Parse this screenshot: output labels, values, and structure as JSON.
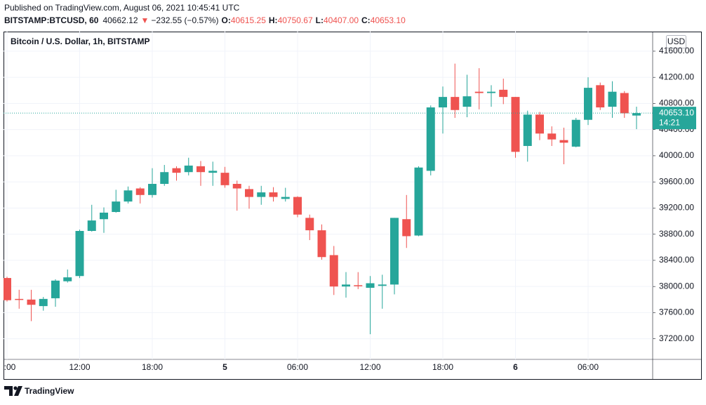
{
  "header": {
    "published": "Published on TradingView.com, August 06, 2021 10:45:41 UTC",
    "symbol": "BITSTAMP:BTCUSD, 60",
    "price": "40662.12",
    "change": "−232.55 (−0.57%)",
    "ohlc": [
      {
        "label": "O:",
        "value": "40615.25"
      },
      {
        "label": "H:",
        "value": "40750.67"
      },
      {
        "label": "L:",
        "value": "40407.00"
      },
      {
        "label": "C:",
        "value": "40653.10"
      }
    ]
  },
  "chart_data": {
    "type": "candlestick",
    "title": "Bitcoin / U.S. Dollar, 1h, BITSTAMP",
    "currency": "USD",
    "categories": [
      ":00",
      null,
      null,
      null,
      null,
      null,
      "12:00",
      null,
      null,
      null,
      null,
      null,
      "18:00",
      null,
      null,
      null,
      null,
      null,
      "5",
      null,
      null,
      null,
      null,
      null,
      "06:00",
      null,
      null,
      null,
      null,
      null,
      "12:00",
      null,
      null,
      null,
      null,
      null,
      "18:00",
      null,
      null,
      null,
      null,
      null,
      "6",
      null,
      null,
      null,
      null,
      null,
      "06:00",
      null,
      null,
      null,
      null
    ],
    "open": [
      38130,
      37810,
      37800,
      37700,
      37820,
      38080,
      38160,
      38850,
      39030,
      39140,
      39300,
      39500,
      39400,
      39570,
      39810,
      39750,
      39840,
      39740,
      39740,
      39570,
      39490,
      39370,
      39440,
      39340,
      39370,
      39050,
      38860,
      38480,
      38000,
      38020,
      37980,
      38010,
      38030,
      39030,
      38780,
      39770,
      40740,
      40900,
      40750,
      40980,
      40960,
      41010,
      40900,
      40150,
      40630,
      40340,
      40240,
      40140,
      40550,
      41080,
      40750,
      40960,
      40615.25
    ],
    "high": [
      38150,
      37950,
      37950,
      37840,
      38110,
      38260,
      38870,
      39250,
      39210,
      39480,
      39530,
      39520,
      39810,
      39860,
      39840,
      39970,
      39920,
      39910,
      39830,
      39620,
      39540,
      39540,
      39520,
      39510,
      39380,
      39100,
      38950,
      38620,
      38220,
      38220,
      38160,
      38180,
      39050,
      39400,
      39840,
      40770,
      41060,
      41410,
      41240,
      41340,
      41080,
      41180,
      40900,
      40690,
      40670,
      40450,
      40430,
      40580,
      41200,
      41120,
      41140,
      40990,
      40750.67
    ],
    "low": [
      37770,
      37660,
      37470,
      37630,
      37690,
      38060,
      38130,
      38840,
      38820,
      39130,
      39270,
      39270,
      39360,
      39540,
      39620,
      39700,
      39540,
      39540,
      39510,
      39160,
      39190,
      39250,
      39300,
      39300,
      39060,
      38710,
      38410,
      37870,
      37830,
      37960,
      37270,
      37660,
      37880,
      38590,
      38770,
      39700,
      40340,
      40580,
      40590,
      40710,
      40750,
      40790,
      39970,
      39910,
      40240,
      40150,
      39870,
      40130,
      40470,
      40700,
      40580,
      40580,
      40407
    ],
    "close": [
      37790,
      37800,
      37720,
      37810,
      38090,
      38140,
      38850,
      39010,
      39130,
      39300,
      39470,
      39400,
      39570,
      39750,
      39740,
      39850,
      39750,
      39770,
      39550,
      39500,
      39370,
      39440,
      39370,
      39370,
      39100,
      38860,
      38450,
      38000,
      38030,
      38010,
      38050,
      38030,
      39050,
      38770,
      39820,
      40740,
      40900,
      40700,
      40910,
      40960,
      40980,
      40900,
      40060,
      40630,
      40340,
      40250,
      40200,
      40550,
      41040,
      40740,
      40980,
      40650,
      40653.1
    ],
    "up_color": "#26a69a",
    "down_color": "#ef5350",
    "ylim": [
      36885,
      41900
    ],
    "yticks": [
      {
        "value": 37200,
        "label": "37200.00"
      },
      {
        "value": 37600,
        "label": "37600.00"
      },
      {
        "value": 38000,
        "label": "38000.00"
      },
      {
        "value": 38400,
        "label": "38400.00"
      },
      {
        "value": 38800,
        "label": "38800.00"
      },
      {
        "value": 39200,
        "label": "39200.00"
      },
      {
        "value": 39600,
        "label": "39600.00"
      },
      {
        "value": 40000,
        "label": "40000.00"
      },
      {
        "value": 40400,
        "label": "40400.00"
      },
      {
        "value": 40800,
        "label": "40800.00"
      },
      {
        "value": 41200,
        "label": "41200.00"
      },
      {
        "value": 41600,
        "label": "41600.00"
      }
    ],
    "grid": true,
    "last_price": {
      "value": 40653.1,
      "label": "40653.10"
    },
    "countdown": "14:21"
  },
  "footer": {
    "brand": "TradingView"
  }
}
